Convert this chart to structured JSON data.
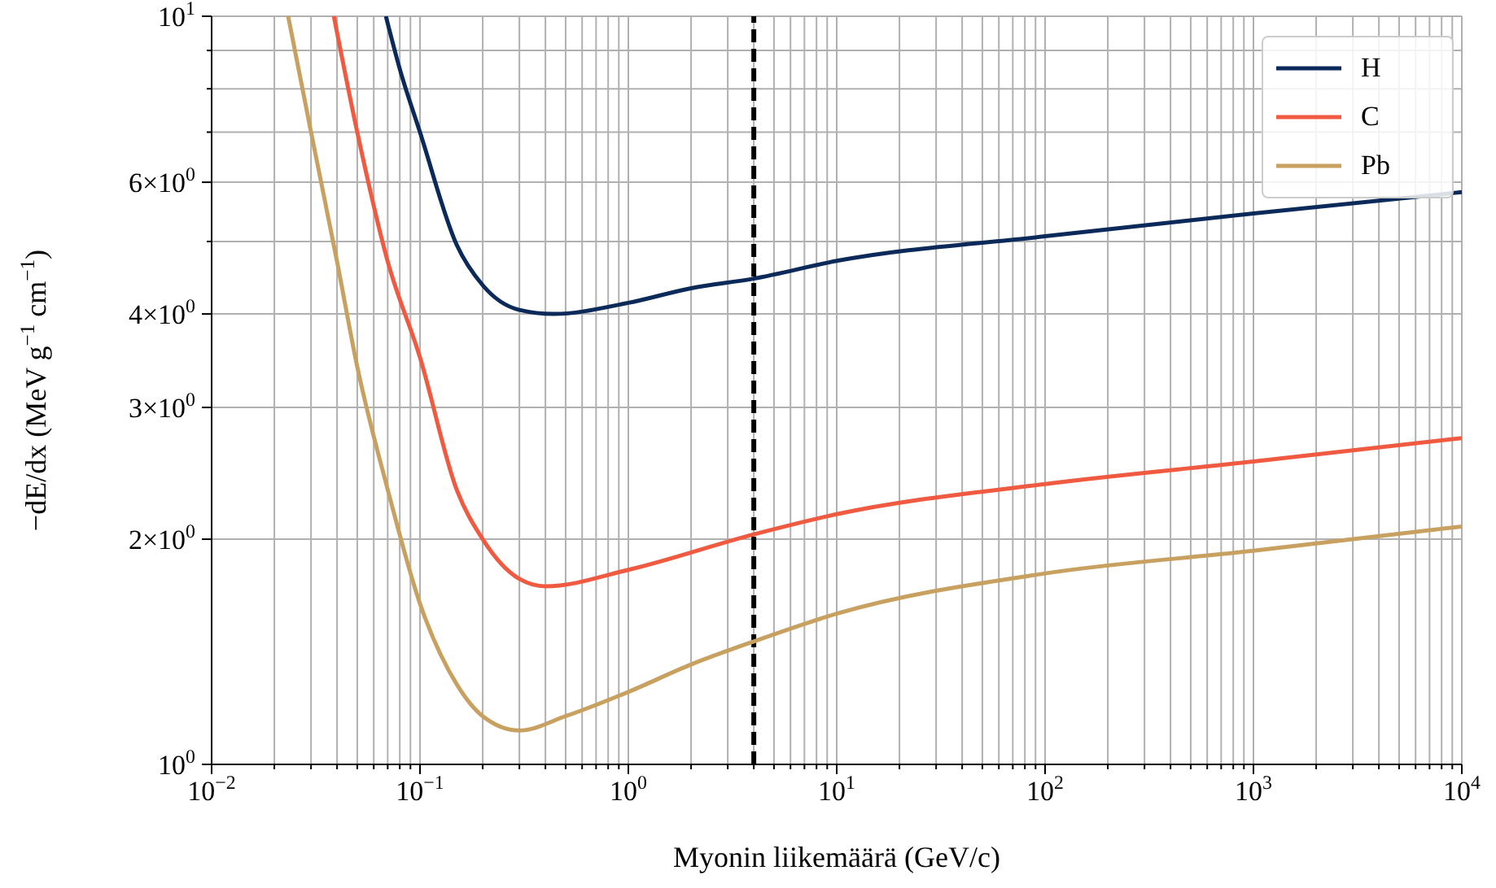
{
  "chart_data": {
    "type": "line",
    "xlabel": "Myonin liikemäärä (GeV/c)",
    "ylabel": "−dE/dx (MeV g$^{−1}$ cm$^{−1}$)",
    "log": "xy",
    "grid": true,
    "legend": "top right",
    "marker": "none",
    "line_style": "solid",
    "xlim": [
      0.01,
      10000
    ],
    "ylim": [
      1,
      10
    ],
    "xticks": [
      {
        "value": 0.01,
        "label": "10$^{−2}$"
      },
      {
        "value": 0.02,
        "label": null
      },
      {
        "value": 0.03,
        "label": null
      },
      {
        "value": 0.04,
        "label": null
      },
      {
        "value": 0.05,
        "label": null
      },
      {
        "value": 0.06,
        "label": null
      },
      {
        "value": 0.07,
        "label": null
      },
      {
        "value": 0.08,
        "label": null
      },
      {
        "value": 0.09,
        "label": null
      },
      {
        "value": 0.1,
        "label": "10$^{−1}$"
      },
      {
        "value": 0.2,
        "label": null
      },
      {
        "value": 0.3,
        "label": null
      },
      {
        "value": 0.4,
        "label": null
      },
      {
        "value": 0.5,
        "label": null
      },
      {
        "value": 0.6,
        "label": null
      },
      {
        "value": 0.7,
        "label": null
      },
      {
        "value": 0.8,
        "label": null
      },
      {
        "value": 0.9,
        "label": null
      },
      {
        "value": 1,
        "label": "10$^{0}$"
      },
      {
        "value": 2,
        "label": null
      },
      {
        "value": 3,
        "label": null
      },
      {
        "value": 4,
        "label": null
      },
      {
        "value": 5,
        "label": null
      },
      {
        "value": 6,
        "label": null
      },
      {
        "value": 7,
        "label": null
      },
      {
        "value": 8,
        "label": null
      },
      {
        "value": 9,
        "label": null
      },
      {
        "value": 10,
        "label": "10$^{1}$"
      },
      {
        "value": 20,
        "label": null
      },
      {
        "value": 30,
        "label": null
      },
      {
        "value": 40,
        "label": null
      },
      {
        "value": 50,
        "label": null
      },
      {
        "value": 60,
        "label": null
      },
      {
        "value": 70,
        "label": null
      },
      {
        "value": 80,
        "label": null
      },
      {
        "value": 90,
        "label": null
      },
      {
        "value": 100,
        "label": "10$^{2}$"
      },
      {
        "value": 200,
        "label": null
      },
      {
        "value": 300,
        "label": null
      },
      {
        "value": 400,
        "label": null
      },
      {
        "value": 500,
        "label": null
      },
      {
        "value": 600,
        "label": null
      },
      {
        "value": 700,
        "label": null
      },
      {
        "value": 800,
        "label": null
      },
      {
        "value": 900,
        "label": null
      },
      {
        "value": 1000,
        "label": "10$^{3}$"
      },
      {
        "value": 2000,
        "label": null
      },
      {
        "value": 3000,
        "label": null
      },
      {
        "value": 4000,
        "label": null
      },
      {
        "value": 5000,
        "label": null
      },
      {
        "value": 6000,
        "label": null
      },
      {
        "value": 7000,
        "label": null
      },
      {
        "value": 8000,
        "label": null
      },
      {
        "value": 9000,
        "label": null
      },
      {
        "value": 10000,
        "label": "10$^{4}$"
      }
    ],
    "yticks": [
      {
        "value": 1,
        "label": "10$^{0}$"
      },
      {
        "value": 2,
        "label": "2×10$^{0}$"
      },
      {
        "value": 3,
        "label": "3×10$^{0}$"
      },
      {
        "value": 4,
        "label": "4×10$^{0}$"
      },
      {
        "value": 5,
        "label": null
      },
      {
        "value": 6,
        "label": "6×10$^{0}$"
      },
      {
        "value": 7,
        "label": null
      },
      {
        "value": 8,
        "label": null
      },
      {
        "value": 9,
        "label": null
      },
      {
        "value": 10,
        "label": "10$^{1}$"
      }
    ],
    "ref_lines": [
      {
        "axis": "x",
        "value": 4,
        "color": "#000000",
        "line_style": "dashed"
      }
    ],
    "series": [
      {
        "name": "H",
        "color": "#0b2a5a",
        "x": [
          0.0686,
          0.08,
          0.1,
          0.15,
          0.2,
          0.3,
          0.437,
          1,
          2,
          4,
          10,
          100,
          1000,
          10000
        ],
        "values": [
          10,
          8.5,
          7.0,
          4.95,
          4.37,
          4.05,
          4.0,
          4.14,
          4.33,
          4.46,
          4.71,
          5.08,
          5.45,
          5.82
        ]
      },
      {
        "name": "C",
        "color": "#f05a40",
        "x": [
          0.0386,
          0.05,
          0.07,
          0.1,
          0.15,
          0.2,
          0.3,
          0.4,
          1,
          4,
          10,
          100,
          1000,
          10000
        ],
        "values": [
          10,
          7.0,
          4.7,
          3.5,
          2.33,
          2.0,
          1.77,
          1.73,
          1.82,
          2.03,
          2.16,
          2.37,
          2.54,
          2.73
        ]
      },
      {
        "name": "Pb",
        "color": "#c8a060",
        "x": [
          0.0233,
          0.03,
          0.04,
          0.05,
          0.07,
          0.1,
          0.15,
          0.2,
          0.3,
          0.5,
          1,
          2,
          4,
          10,
          100,
          1000,
          10000
        ],
        "values": [
          10,
          7.0,
          4.7,
          3.4,
          2.33,
          1.64,
          1.28,
          1.16,
          1.11,
          1.16,
          1.25,
          1.36,
          1.46,
          1.59,
          1.8,
          1.93,
          2.08
        ]
      }
    ]
  }
}
